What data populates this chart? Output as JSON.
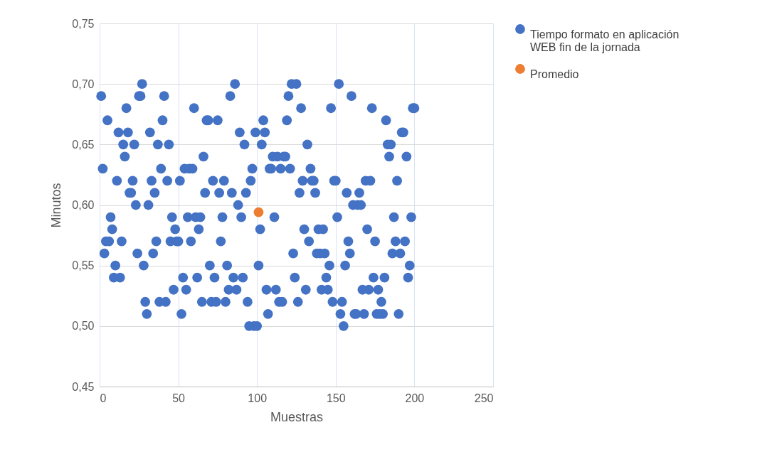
{
  "chart_data": {
    "type": "scatter",
    "xlabel": "Muestras",
    "ylabel": "Minutos",
    "xlim": [
      0,
      250
    ],
    "xticks": [
      0,
      50,
      100,
      150,
      200,
      250
    ],
    "ylim": [
      0.45,
      0.75
    ],
    "yticks": [
      {
        "value": 0.45,
        "label": "0,45"
      },
      {
        "value": 0.5,
        "label": "0,50"
      },
      {
        "value": 0.55,
        "label": "0,55"
      },
      {
        "value": 0.6,
        "label": "0,60"
      },
      {
        "value": 0.65,
        "label": "0,65"
      },
      {
        "value": 0.7,
        "label": "0,70"
      },
      {
        "value": 0.75,
        "label": "0,75"
      }
    ],
    "grid": true,
    "legend": "right",
    "marker": "circle",
    "series": [
      {
        "name": "Tiempo formato en aplicación WEB fin de la jornada",
        "color": "#4472c4",
        "x": [
          1,
          2,
          3,
          4,
          5,
          6,
          7,
          8,
          9,
          10,
          11,
          12,
          13,
          14,
          15,
          16,
          17,
          18,
          19,
          20,
          21,
          22,
          23,
          24,
          25,
          26,
          27,
          28,
          29,
          30,
          31,
          32,
          33,
          34,
          35,
          36,
          37,
          38,
          39,
          40,
          41,
          42,
          43,
          44,
          45,
          46,
          47,
          48,
          49,
          50,
          51,
          52,
          53,
          54,
          55,
          56,
          57,
          58,
          59,
          60,
          61,
          62,
          63,
          64,
          65,
          66,
          67,
          68,
          69,
          70,
          71,
          72,
          73,
          74,
          75,
          76,
          77,
          78,
          79,
          80,
          81,
          82,
          83,
          84,
          85,
          86,
          87,
          88,
          89,
          90,
          91,
          92,
          93,
          94,
          95,
          96,
          97,
          98,
          99,
          100,
          101,
          102,
          103,
          104,
          105,
          106,
          107,
          108,
          109,
          110,
          111,
          112,
          113,
          114,
          115,
          116,
          117,
          118,
          119,
          120,
          121,
          122,
          123,
          124,
          125,
          126,
          127,
          128,
          129,
          130,
          131,
          132,
          133,
          134,
          135,
          136,
          137,
          138,
          139,
          140,
          141,
          142,
          143,
          144,
          145,
          146,
          147,
          148,
          149,
          150,
          151,
          152,
          153,
          154,
          155,
          156,
          157,
          158,
          159,
          160,
          161,
          162,
          163,
          164,
          165,
          166,
          167,
          168,
          169,
          170,
          171,
          172,
          173,
          174,
          175,
          176,
          177,
          178,
          179,
          180,
          181,
          182,
          183,
          184,
          185,
          186,
          187,
          188,
          189,
          190,
          191,
          192,
          193,
          194,
          195,
          196,
          197,
          198,
          199,
          200
        ],
        "values": [
          0.69,
          0.63,
          0.56,
          0.57,
          0.67,
          0.57,
          0.59,
          0.58,
          0.54,
          0.55,
          0.62,
          0.66,
          0.54,
          0.57,
          0.65,
          0.64,
          0.68,
          0.66,
          0.61,
          0.61,
          0.62,
          0.65,
          0.6,
          0.56,
          0.69,
          0.69,
          0.7,
          0.55,
          0.52,
          0.51,
          0.6,
          0.66,
          0.62,
          0.56,
          0.61,
          0.57,
          0.65,
          0.52,
          0.63,
          0.67,
          0.69,
          0.52,
          0.62,
          0.65,
          0.57,
          0.59,
          0.53,
          0.58,
          0.57,
          0.57,
          0.62,
          0.51,
          0.54,
          0.63,
          0.53,
          0.59,
          0.63,
          0.57,
          0.63,
          0.68,
          0.59,
          0.54,
          0.58,
          0.59,
          0.52,
          0.64,
          0.61,
          0.67,
          0.67,
          0.55,
          0.52,
          0.62,
          0.54,
          0.52,
          0.67,
          0.61,
          0.57,
          0.59,
          0.62,
          0.52,
          0.55,
          0.53,
          0.69,
          0.61,
          0.54,
          0.7,
          0.53,
          0.6,
          0.66,
          0.59,
          0.54,
          0.65,
          0.61,
          0.52,
          0.5,
          0.62,
          0.63,
          0.5,
          0.66,
          0.5,
          0.55,
          0.58,
          0.65,
          0.67,
          0.66,
          0.53,
          0.51,
          0.63,
          0.63,
          0.64,
          0.59,
          0.53,
          0.64,
          0.52,
          0.63,
          0.52,
          0.64,
          0.64,
          0.67,
          0.69,
          0.63,
          0.7,
          0.56,
          0.54,
          0.7,
          0.52,
          0.61,
          0.68,
          0.62,
          0.58,
          0.53,
          0.65,
          0.57,
          0.63,
          0.62,
          0.62,
          0.61,
          0.56,
          0.58,
          0.56,
          0.53,
          0.58,
          0.56,
          0.54,
          0.53,
          0.55,
          0.68,
          0.52,
          0.62,
          0.62,
          0.59,
          0.7,
          0.51,
          0.52,
          0.5,
          0.55,
          0.61,
          0.57,
          0.56,
          0.69,
          0.6,
          0.51,
          0.51,
          0.6,
          0.61,
          0.6,
          0.53,
          0.51,
          0.62,
          0.58,
          0.53,
          0.62,
          0.68,
          0.54,
          0.57,
          0.51,
          0.53,
          0.51,
          0.52,
          0.51,
          0.54,
          0.67,
          0.65,
          0.64,
          0.65,
          0.56,
          0.59,
          0.57,
          0.62,
          0.51,
          0.56,
          0.66,
          0.66,
          0.57,
          0.64,
          0.54,
          0.55,
          0.59,
          0.68,
          0.68
        ]
      },
      {
        "name": "Promedio",
        "color": "#ed7d31",
        "x": [
          101
        ],
        "values": [
          0.594
        ]
      }
    ]
  }
}
